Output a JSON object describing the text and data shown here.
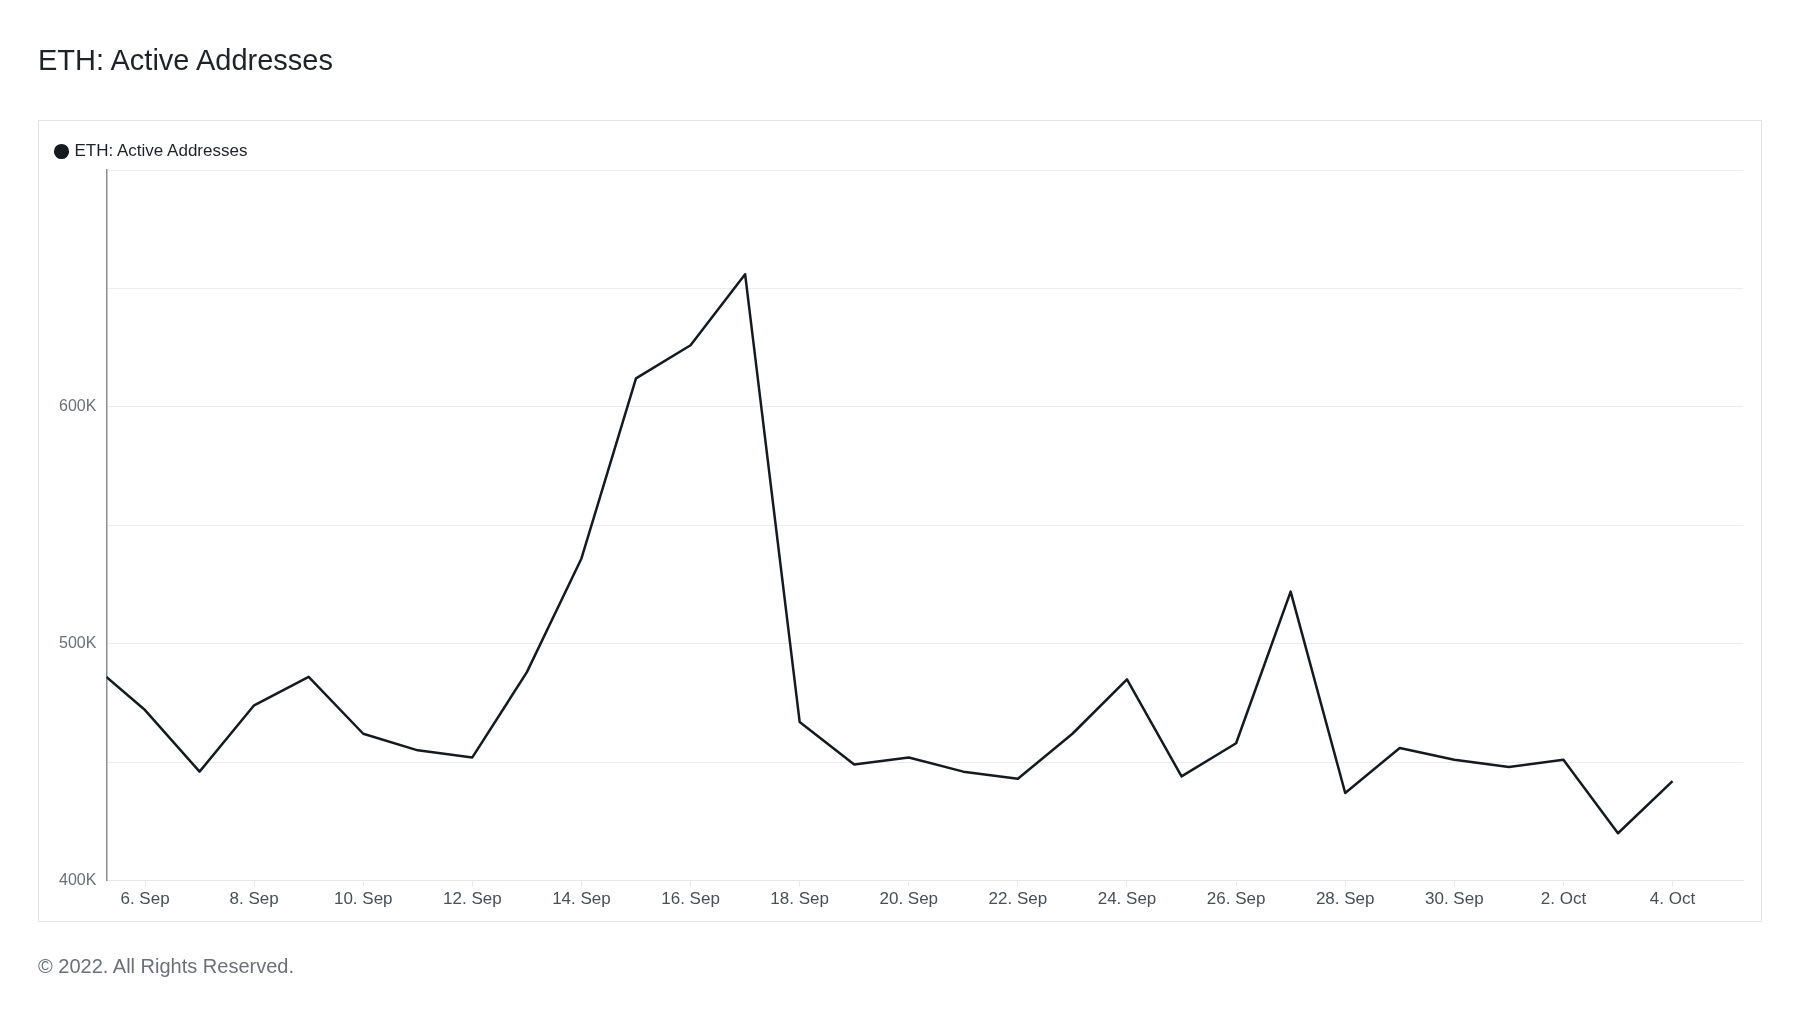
{
  "chart_data": {
    "type": "line",
    "title": "ETH: Active Addresses",
    "x": [
      "2022-09-05T07:00",
      "2022-09-06",
      "2022-09-07",
      "2022-09-08",
      "2022-09-09",
      "2022-09-10",
      "2022-09-11",
      "2022-09-12",
      "2022-09-13",
      "2022-09-14",
      "2022-09-15",
      "2022-09-16",
      "2022-09-17",
      "2022-09-18",
      "2022-09-19",
      "2022-09-20",
      "2022-09-21",
      "2022-09-22",
      "2022-09-23",
      "2022-09-24",
      "2022-09-25",
      "2022-09-26",
      "2022-09-27",
      "2022-09-28",
      "2022-09-29",
      "2022-09-30",
      "2022-10-01",
      "2022-10-02",
      "2022-10-03",
      "2022-10-04"
    ],
    "series": [
      {
        "name": "ETH: Active Addresses",
        "color": "#151a21",
        "values": [
          486000,
          472000,
          446000,
          474000,
          486000,
          462000,
          455000,
          452000,
          488000,
          536000,
          612000,
          626000,
          656000,
          467000,
          449000,
          452000,
          446000,
          443000,
          462000,
          485000,
          444000,
          458000,
          522000,
          437000,
          456000,
          451000,
          448000,
          451000,
          420000,
          442000
        ]
      }
    ],
    "xlim": [
      "2022-09-05T07:00",
      "2022-10-05T07:00"
    ],
    "xticks": [
      {
        "value": "2022-09-06",
        "label": "6. Sep"
      },
      {
        "value": "2022-09-08",
        "label": "8. Sep"
      },
      {
        "value": "2022-09-10",
        "label": "10. Sep"
      },
      {
        "value": "2022-09-12",
        "label": "12. Sep"
      },
      {
        "value": "2022-09-14",
        "label": "14. Sep"
      },
      {
        "value": "2022-09-16",
        "label": "16. Sep"
      },
      {
        "value": "2022-09-18",
        "label": "18. Sep"
      },
      {
        "value": "2022-09-20",
        "label": "20. Sep"
      },
      {
        "value": "2022-09-22",
        "label": "22. Sep"
      },
      {
        "value": "2022-09-24",
        "label": "24. Sep"
      },
      {
        "value": "2022-09-26",
        "label": "26. Sep"
      },
      {
        "value": "2022-09-28",
        "label": "28. Sep"
      },
      {
        "value": "2022-09-30",
        "label": "30. Sep"
      },
      {
        "value": "2022-10-02",
        "label": "2. Oct"
      },
      {
        "value": "2022-10-04",
        "label": "4. Oct"
      }
    ],
    "ylim": [
      400000,
      700000
    ],
    "yticks": [
      {
        "value": 400000,
        "label": "400K"
      },
      {
        "value": 450000,
        "label": null
      },
      {
        "value": 500000,
        "label": "500K"
      },
      {
        "value": 550000,
        "label": null
      },
      {
        "value": 600000,
        "label": "600K"
      },
      {
        "value": 650000,
        "label": null
      },
      {
        "value": 700000,
        "label": null
      }
    ],
    "grid": "y",
    "legend": "top left",
    "marker": "none",
    "line_style": "solid",
    "annotations": [
      "© 2022. All Rights Reserved."
    ]
  }
}
